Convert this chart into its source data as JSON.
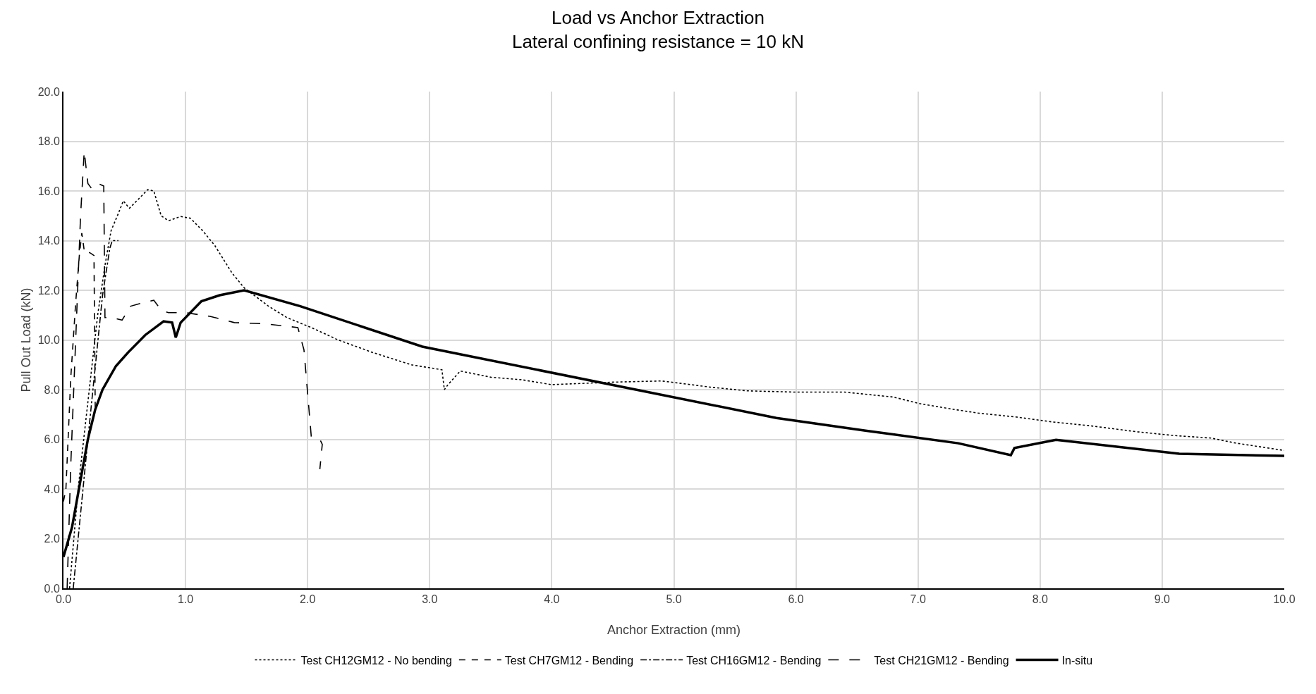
{
  "chart_data": {
    "type": "line",
    "title": "Load vs Anchor Extraction",
    "subtitle": "Lateral confining resistance = 10 kN",
    "xlabel": "Anchor Extraction (mm)",
    "ylabel": "Pull Out Load (kN)",
    "xlim": [
      0,
      10
    ],
    "ylim": [
      0,
      20
    ],
    "xticks": [
      {
        "value": 0,
        "label": "0.0"
      },
      {
        "value": 1,
        "label": "1.0"
      },
      {
        "value": 2,
        "label": "2.0"
      },
      {
        "value": 3,
        "label": "3.0"
      },
      {
        "value": 4,
        "label": "4.0"
      },
      {
        "value": 5,
        "label": "5.0"
      },
      {
        "value": 6,
        "label": "6.0"
      },
      {
        "value": 7,
        "label": "7.0"
      },
      {
        "value": 8,
        "label": "8.0"
      },
      {
        "value": 9,
        "label": "9.0"
      },
      {
        "value": 10,
        "label": "10.0"
      }
    ],
    "yticks": [
      {
        "value": 0,
        "label": "0.0"
      },
      {
        "value": 2,
        "label": "2.0"
      },
      {
        "value": 4,
        "label": "4.0"
      },
      {
        "value": 6,
        "label": "6.0"
      },
      {
        "value": 8,
        "label": "8.0"
      },
      {
        "value": 10,
        "label": "10.0"
      },
      {
        "value": 12,
        "label": "12.0"
      },
      {
        "value": 14,
        "label": "14.0"
      },
      {
        "value": 16,
        "label": "16.0"
      },
      {
        "value": 18,
        "label": "18.0"
      },
      {
        "value": 20,
        "label": "20.0"
      }
    ],
    "grid": true,
    "legend": "bottom",
    "marker": "none",
    "series": [
      {
        "name": "Test CH12GM12 - No bending",
        "color": "#000000",
        "line_style": "dotted",
        "x": [
          0.05,
          0.12,
          0.2,
          0.28,
          0.34,
          0.39,
          0.45,
          0.49,
          0.54,
          0.62,
          0.69,
          0.74,
          0.8,
          0.86,
          0.96,
          1.04,
          1.14,
          1.24,
          1.38,
          1.48,
          1.68,
          1.83,
          2.03,
          2.25,
          2.53,
          2.85,
          3.1,
          3.12,
          3.15,
          3.25,
          3.5,
          3.75,
          4.0,
          4.5,
          4.9,
          5.3,
          5.6,
          6.0,
          6.4,
          6.8,
          7.0,
          7.3,
          7.5,
          7.8,
          8.1,
          8.4,
          8.8,
          9.1,
          9.4,
          9.6,
          10.0
        ],
        "values": [
          0,
          4,
          7.5,
          11,
          13,
          14.4,
          15.1,
          15.6,
          15.3,
          15.7,
          16.05,
          16.0,
          15.0,
          14.8,
          14.97,
          14.9,
          14.4,
          13.8,
          12.7,
          12.1,
          11.36,
          10.9,
          10.5,
          10.0,
          9.5,
          9.0,
          8.8,
          8.0,
          8.2,
          8.75,
          8.5,
          8.4,
          8.2,
          8.3,
          8.35,
          8.1,
          7.95,
          7.9,
          7.9,
          7.7,
          7.45,
          7.2,
          7.05,
          6.9,
          6.7,
          6.55,
          6.3,
          6.15,
          6.05,
          5.85,
          5.55
        ]
      },
      {
        "name": "Test CH7GM12 - Bending",
        "color": "#000000",
        "line_style": "dashed",
        "x": [
          0.0,
          0.02,
          0.06,
          0.1,
          0.13,
          0.15,
          0.17,
          0.22,
          0.25,
          0.26
        ],
        "values": [
          3.5,
          4.0,
          8.5,
          11.5,
          13.4,
          14.3,
          13.6,
          13.5,
          13.4,
          7.3
        ]
      },
      {
        "name": "Test CH16GM12 - Bending",
        "color": "#000000",
        "line_style": "dashdot",
        "x": [
          0.08,
          0.2,
          0.32,
          0.38,
          0.4,
          0.45
        ],
        "values": [
          0,
          6,
          11.8,
          13.7,
          14.0,
          14.0
        ]
      },
      {
        "name": "Test CH21GM12 - Bending",
        "color": "#000000",
        "line_style": "longdash",
        "x": [
          0.03,
          0.06,
          0.1,
          0.14,
          0.17,
          0.2,
          0.23,
          0.28,
          0.33,
          0.34,
          0.39,
          0.48,
          0.55,
          0.65,
          0.74,
          0.8,
          0.86,
          1.0,
          1.2,
          1.4,
          1.65,
          1.92,
          1.97,
          2.03,
          2.1,
          2.12,
          2.1
        ],
        "values": [
          0,
          5,
          10,
          15,
          17.6,
          16.3,
          16.1,
          16.3,
          16.2,
          10.9,
          10.9,
          10.8,
          11.36,
          11.5,
          11.6,
          11.2,
          11.1,
          11.1,
          10.95,
          10.7,
          10.65,
          10.5,
          9.6,
          6.1,
          6.0,
          5.8,
          4.8
        ]
      },
      {
        "name": "In-situ",
        "color": "#000000",
        "line_style": "solid",
        "x": [
          0,
          0.07,
          0.2,
          0.26,
          0.32,
          0.43,
          0.53,
          0.67,
          0.82,
          0.89,
          0.92,
          0.96,
          1.13,
          1.28,
          1.48,
          1.94,
          2.94,
          5.84,
          6.57,
          7.33,
          7.76,
          7.79,
          8.13,
          9.14,
          10.0
        ],
        "values": [
          1.26,
          2.46,
          6.0,
          7.2,
          8.0,
          8.95,
          9.5,
          10.2,
          10.75,
          10.7,
          10.1,
          10.7,
          11.56,
          11.8,
          12.0,
          11.36,
          9.73,
          6.86,
          6.35,
          5.84,
          5.36,
          5.65,
          5.98,
          5.42,
          5.33
        ]
      }
    ]
  }
}
